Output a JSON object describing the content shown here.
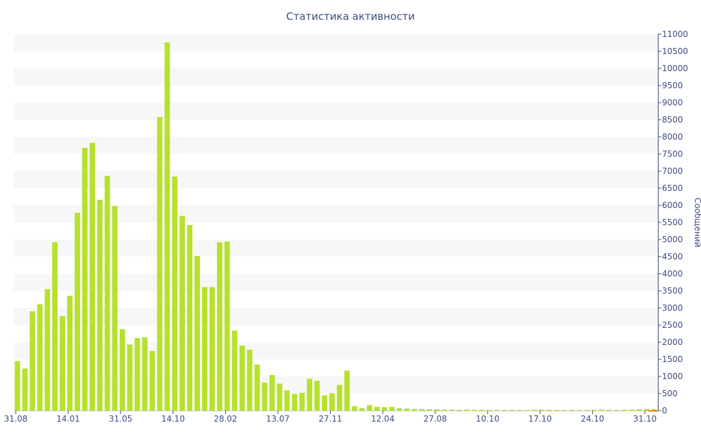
{
  "chart_data": {
    "type": "bar",
    "title": "Статистика активности",
    "xlabel": "",
    "ylabel": "Сообщений",
    "ylim": [
      0,
      11000
    ],
    "ytick_step": 500,
    "bar_color": "#b8e02e",
    "baseline_color": "#e87a1e",
    "grid_band_color": "#f7f7f7",
    "axis_color": "#3e4a7e",
    "x_tick_labels": [
      "31.08",
      "14.01",
      "31.05",
      "14.10",
      "28.02",
      "13.07",
      "27.11",
      "12.04",
      "27.08",
      "10.10",
      "17.10",
      "24.10",
      "31.10"
    ],
    "x_tick_bar_index": [
      0,
      7,
      14,
      21,
      28,
      35,
      42,
      49,
      56,
      63,
      70,
      77,
      84
    ],
    "values": [
      1450,
      1230,
      2900,
      3110,
      3550,
      4920,
      2760,
      3360,
      5780,
      7680,
      7830,
      6160,
      6860,
      5980,
      2380,
      1930,
      2120,
      2140,
      1740,
      8580,
      10760,
      6840,
      5690,
      5420,
      4520,
      3610,
      3610,
      4920,
      4940,
      2340,
      1900,
      1780,
      1350,
      820,
      1040,
      790,
      590,
      490,
      520,
      930,
      870,
      450,
      510,
      750,
      1170,
      130,
      70,
      160,
      110,
      100,
      110,
      70,
      60,
      50,
      50,
      40,
      40,
      30,
      30,
      25,
      30,
      25,
      25,
      20,
      20,
      20,
      25,
      20,
      20,
      25,
      30,
      25,
      20,
      20,
      25,
      20,
      20,
      25,
      30,
      25,
      20,
      25,
      30,
      40,
      50,
      45
    ]
  }
}
